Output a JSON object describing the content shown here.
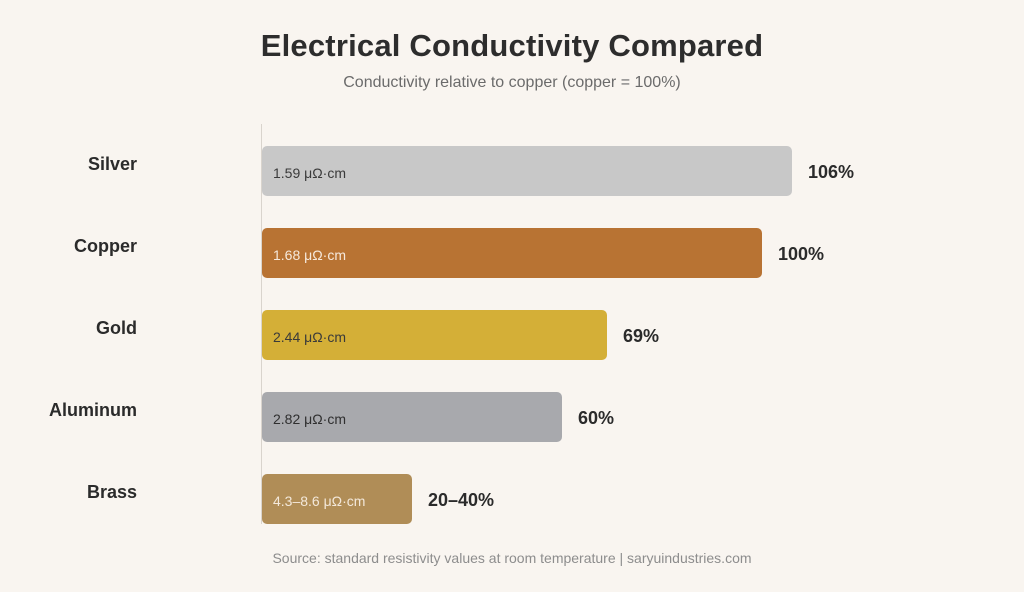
{
  "header": {
    "title": "Electrical Conductivity Compared",
    "subtitle": "Conductivity relative to copper (copper = 100%)"
  },
  "footer": {
    "source": "Source: standard resistivity values at room temperature | saryuindustries.com"
  },
  "chart_data": {
    "type": "bar",
    "orientation": "horizontal",
    "title": "Electrical Conductivity Compared",
    "subtitle": "Conductivity relative to copper (copper = 100%)",
    "categories": [
      "Silver",
      "Copper",
      "Gold",
      "Aluminum",
      "Brass"
    ],
    "values": [
      106,
      100,
      69,
      60,
      30
    ],
    "value_labels": [
      "106%",
      "100%",
      "69%",
      "60%",
      "20–40%"
    ],
    "bar_labels": [
      "1.59 μΩ·cm",
      "1.68 μΩ·cm",
      "2.44 μΩ·cm",
      "2.82 μΩ·cm",
      "4.3–8.6 μΩ·cm"
    ],
    "colors": [
      "#c8c8c8",
      "#b87333",
      "#d4af37",
      "#a8a9ad",
      "#b08d57"
    ],
    "bar_label_colors": [
      "#3a3a3a",
      "#f6e9dc",
      "#3a3a3a",
      "#2f2f2f",
      "#f3e8da"
    ],
    "xlim": [
      0,
      106
    ],
    "grid": false,
    "legend": "none"
  }
}
